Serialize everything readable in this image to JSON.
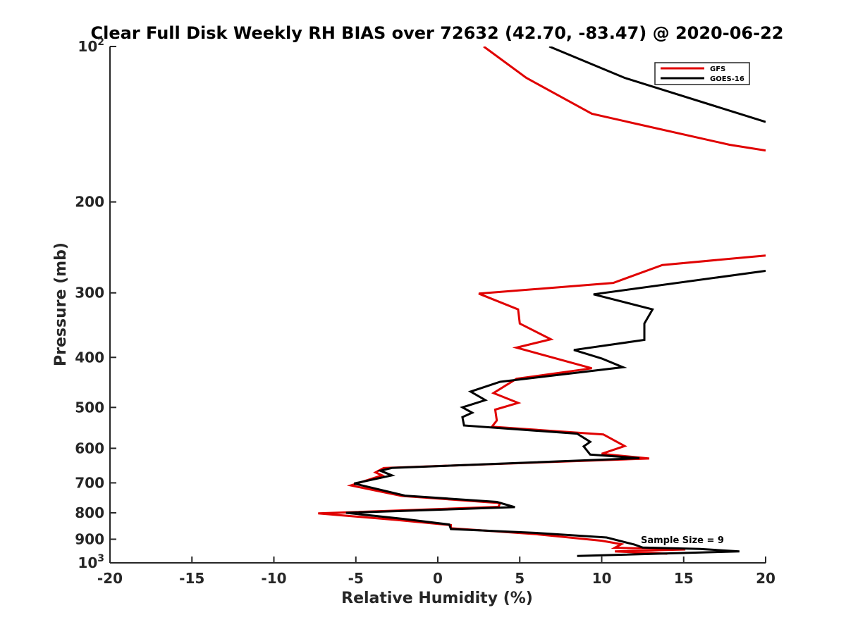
{
  "chart_data": {
    "type": "line",
    "title": "Clear Full Disk Weekly RH BIAS over 72632 (42.70, -83.47) @ 2020-06-22",
    "xlabel": "Relative Humidity (%)",
    "ylabel": "Pressure (mb)",
    "xlim": [
      -20,
      20
    ],
    "ylim": [
      100,
      1000
    ],
    "y_scale": "log",
    "y_reversed": true,
    "x_ticks": [
      "-20",
      "-15",
      "-10",
      "-5",
      "0",
      "5",
      "10",
      "15",
      "20"
    ],
    "y_ticks": [
      {
        "value": 100,
        "base": "10",
        "exp": "2"
      },
      {
        "value": 200,
        "label": "200"
      },
      {
        "value": 300,
        "label": "300"
      },
      {
        "value": 400,
        "label": "400"
      },
      {
        "value": 500,
        "label": "500"
      },
      {
        "value": 600,
        "label": "600"
      },
      {
        "value": 700,
        "label": "700"
      },
      {
        "value": 800,
        "label": "800"
      },
      {
        "value": 900,
        "label": "900"
      },
      {
        "value": 1000,
        "base": "10",
        "exp": "3"
      }
    ],
    "legend_position": "top-right",
    "annotation": "Sample Size = 9",
    "series": [
      {
        "name": "GFS",
        "color": "#e00000",
        "segments": [
          [
            [
              2.8,
              100
            ],
            [
              5.4,
              115
            ],
            [
              9.4,
              135
            ],
            [
              17.8,
              155
            ],
            [
              20,
              159
            ]
          ],
          [
            [
              20,
              254
            ],
            [
              13.7,
              265
            ],
            [
              10.7,
              287
            ],
            [
              2.5,
              301
            ],
            [
              4.9,
              323
            ],
            [
              5.0,
              344
            ],
            [
              6.9,
              369
            ],
            [
              4.8,
              383
            ],
            [
              9.4,
              420
            ],
            [
              4.8,
              440
            ],
            [
              3.4,
              469
            ],
            [
              4.9,
              490
            ],
            [
              3.5,
              505
            ],
            [
              3.6,
              530
            ],
            [
              3.3,
              545
            ],
            [
              10.1,
              564
            ],
            [
              11.4,
              594
            ],
            [
              10.0,
              615
            ],
            [
              12.9,
              628
            ],
            [
              -3.3,
              655
            ],
            [
              -3.8,
              668
            ],
            [
              -3.4,
              677
            ],
            [
              -5.3,
              708
            ],
            [
              -2.2,
              742
            ],
            [
              3.8,
              766
            ],
            [
              3.7,
              779
            ],
            [
              -7.3,
              802
            ],
            [
              -2.5,
              826
            ],
            [
              0.8,
              845
            ],
            [
              0.8,
              857
            ],
            [
              6.0,
              880
            ],
            [
              10.0,
              906
            ],
            [
              11.2,
              920
            ],
            [
              10.8,
              935
            ],
            [
              15.1,
              942
            ],
            [
              10.8,
              950
            ],
            [
              14.0,
              960
            ]
          ]
        ]
      },
      {
        "name": "GOES-16",
        "color": "#000000",
        "segments": [
          [
            [
              6.8,
              100
            ],
            [
              11.4,
              115
            ],
            [
              20,
              140
            ]
          ],
          [
            [
              20,
              272
            ],
            [
              9.5,
              302
            ],
            [
              13.1,
              323
            ],
            [
              12.6,
              344
            ],
            [
              12.6,
              370
            ],
            [
              8.3,
              387
            ],
            [
              10.0,
              402
            ],
            [
              11.3,
              418
            ],
            [
              3.8,
              446
            ],
            [
              2.0,
              466
            ],
            [
              2.9,
              484
            ],
            [
              1.5,
              500
            ],
            [
              2.1,
              512
            ],
            [
              1.5,
              522
            ],
            [
              1.6,
              542
            ],
            [
              8.5,
              562
            ],
            [
              9.3,
              583
            ],
            [
              8.9,
              595
            ],
            [
              9.3,
              617
            ],
            [
              12.3,
              627
            ],
            [
              -2.8,
              655
            ],
            [
              -3.5,
              663
            ],
            [
              -2.8,
              677
            ],
            [
              -5.1,
              702
            ],
            [
              -2.0,
              741
            ],
            [
              3.6,
              762
            ],
            [
              4.7,
              780
            ],
            [
              -5.6,
              800
            ],
            [
              -2.1,
              822
            ],
            [
              0.7,
              843
            ],
            [
              0.8,
              860
            ],
            [
              6.0,
              875
            ],
            [
              10.3,
              893
            ],
            [
              12.0,
              922
            ],
            [
              12.5,
              934
            ],
            [
              16.0,
              940
            ],
            [
              18.4,
              950
            ],
            [
              8.5,
              970
            ]
          ]
        ]
      }
    ]
  }
}
